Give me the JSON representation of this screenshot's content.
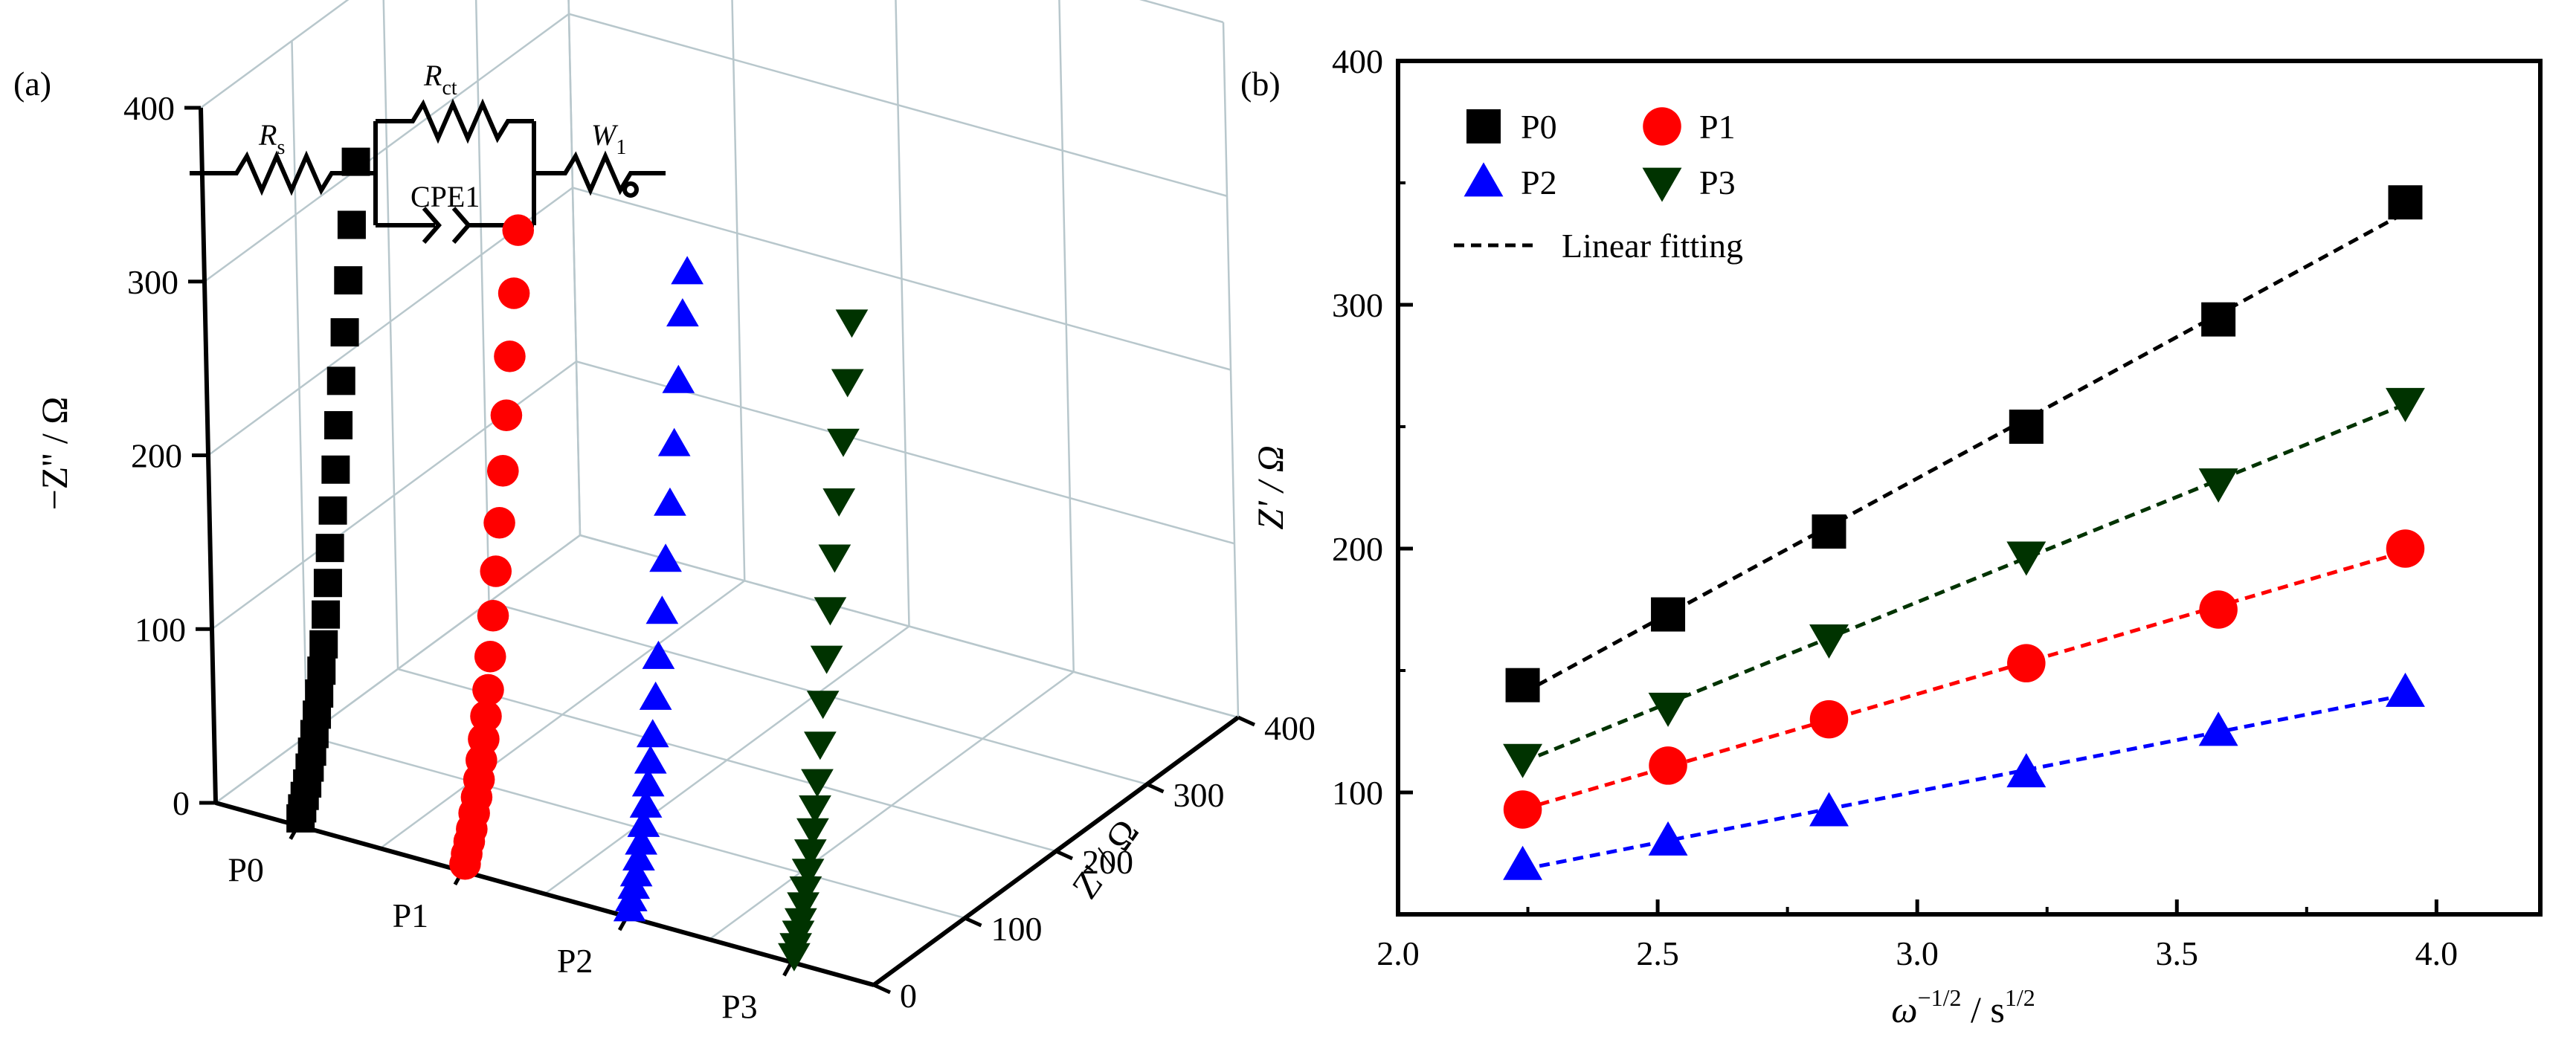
{
  "panel_a": {
    "label": "(a)",
    "z_axis_title": "−Z'' / Ω",
    "z_ticks": [
      "0",
      "100",
      "200",
      "300",
      "400"
    ],
    "y_axis_title": "Z' / Ω",
    "y_ticks": [
      "0",
      "100",
      "200",
      "300",
      "400"
    ],
    "x_ticks": [
      "P0",
      "P1",
      "P2",
      "P3"
    ],
    "circuit": {
      "rs_main": "R",
      "rs_sub": "s",
      "rct_main": "R",
      "rct_sub": "ct",
      "cpe": "CPE1",
      "w_main": "W",
      "w_sub": "1"
    }
  },
  "panel_b": {
    "label": "(b)",
    "xlabel_main": "ω",
    "xlabel_sup1": "−1/2",
    "xlabel_mid": " / s",
    "xlabel_sup2": "1/2",
    "ylabel": "Z' / Ω",
    "x_ticks": [
      "2.0",
      "2.5",
      "3.0",
      "3.5",
      "4.0"
    ],
    "y_ticks": [
      "100",
      "200",
      "300",
      "400"
    ],
    "fit_label": "Linear fitting"
  },
  "colors": {
    "P0": "#000000",
    "P1": "#ff0000",
    "P2": "#0000ff",
    "P3": "#003300"
  },
  "chart_data": [
    {
      "type": "scatter",
      "title": "",
      "subtype": "3D Nyquist plots",
      "xlabel": "",
      "ylabel": "Z' / Ω",
      "zlabel": "−Z'' / Ω",
      "categories": [
        "P0",
        "P1",
        "P2",
        "P3"
      ],
      "ylim": [
        0,
        400
      ],
      "zlim": [
        0,
        400
      ],
      "grid": true,
      "series": [
        {
          "name": "P0",
          "marker": "square",
          "color": "#000000",
          "points": [
            [
              3,
              3
            ],
            [
              5,
              8
            ],
            [
              8,
              14
            ],
            [
              11,
              20
            ],
            [
              14,
              28
            ],
            [
              17,
              36
            ],
            [
              20,
              45
            ],
            [
              23,
              55
            ],
            [
              26,
              66
            ],
            [
              29,
              78
            ],
            [
              32,
              92
            ],
            [
              35,
              108
            ],
            [
              38,
              125
            ],
            [
              41,
              144
            ],
            [
              45,
              164
            ],
            [
              49,
              186
            ],
            [
              53,
              210
            ],
            [
              57,
              234
            ],
            [
              62,
              260
            ],
            [
              67,
              288
            ],
            [
              72,
              318
            ],
            [
              78,
              352
            ]
          ]
        },
        {
          "name": "P1",
          "marker": "circle",
          "color": "#ff0000",
          "points": [
            [
              3,
              3
            ],
            [
              5,
              8
            ],
            [
              8,
              14
            ],
            [
              11,
              20
            ],
            [
              14,
              28
            ],
            [
              17,
              36
            ],
            [
              20,
              45
            ],
            [
              23,
              55
            ],
            [
              26,
              66
            ],
            [
              29,
              78
            ],
            [
              32,
              92
            ],
            [
              35,
              110
            ],
            [
              39,
              132
            ],
            [
              43,
              156
            ],
            [
              48,
              182
            ],
            [
              53,
              210
            ],
            [
              58,
              240
            ],
            [
              63,
              272
            ],
            [
              69,
              306
            ],
            [
              75,
              340
            ]
          ]
        },
        {
          "name": "P2",
          "marker": "triangle-up",
          "color": "#0000ff",
          "points": [
            [
              3,
              3
            ],
            [
              5,
              8
            ],
            [
              8,
              14
            ],
            [
              11,
              20
            ],
            [
              14,
              28
            ],
            [
              17,
              36
            ],
            [
              20,
              45
            ],
            [
              23,
              55
            ],
            [
              26,
              66
            ],
            [
              29,
              78
            ],
            [
              32,
              92
            ],
            [
              36,
              112
            ],
            [
              40,
              134
            ],
            [
              45,
              158
            ],
            [
              50,
              186
            ],
            [
              56,
              216
            ],
            [
              62,
              248
            ],
            [
              68,
              282
            ],
            [
              74,
              318
            ],
            [
              80,
              340
            ]
          ]
        },
        {
          "name": "P3",
          "marker": "triangle-down",
          "color": "#003300",
          "points": [
            [
              3,
              3
            ],
            [
              5,
              8
            ],
            [
              8,
              14
            ],
            [
              11,
              20
            ],
            [
              14,
              28
            ],
            [
              17,
              36
            ],
            [
              20,
              45
            ],
            [
              23,
              55
            ],
            [
              26,
              66
            ],
            [
              29,
              78
            ],
            [
              32,
              92
            ],
            [
              36,
              112
            ],
            [
              40,
              134
            ],
            [
              45,
              158
            ],
            [
              50,
              184
            ],
            [
              56,
              212
            ],
            [
              62,
              242
            ],
            [
              68,
              274
            ],
            [
              74,
              306
            ],
            [
              80,
              338
            ]
          ]
        }
      ]
    },
    {
      "type": "scatter",
      "title": "",
      "xlabel": "ω⁻¹ᐟ² / s¹ᐟ²",
      "ylabel": "Z' / Ω",
      "xlim": [
        2.0,
        4.2
      ],
      "ylim": [
        50,
        400
      ],
      "legend_position": "top-left",
      "x": [
        2.24,
        2.52,
        2.83,
        3.21,
        3.58,
        3.94
      ],
      "series": [
        {
          "name": "P0",
          "marker": "square",
          "color": "#000000",
          "values": [
            144,
            173,
            207,
            250,
            294,
            342
          ]
        },
        {
          "name": "P1",
          "marker": "circle",
          "color": "#ff0000",
          "values": [
            93,
            111,
            130,
            153,
            175,
            200
          ]
        },
        {
          "name": "P2",
          "marker": "triangle-up",
          "color": "#0000ff",
          "values": [
            70,
            80,
            92,
            108,
            125,
            141
          ]
        },
        {
          "name": "P3",
          "marker": "triangle-down",
          "color": "#003300",
          "values": [
            114,
            135,
            163,
            197,
            227,
            260
          ]
        }
      ],
      "fits": [
        {
          "series": "P0",
          "style": "dashed",
          "name": "Linear fitting"
        },
        {
          "series": "P1",
          "style": "dashed"
        },
        {
          "series": "P2",
          "style": "dashed"
        },
        {
          "series": "P3",
          "style": "dashed"
        }
      ]
    }
  ]
}
